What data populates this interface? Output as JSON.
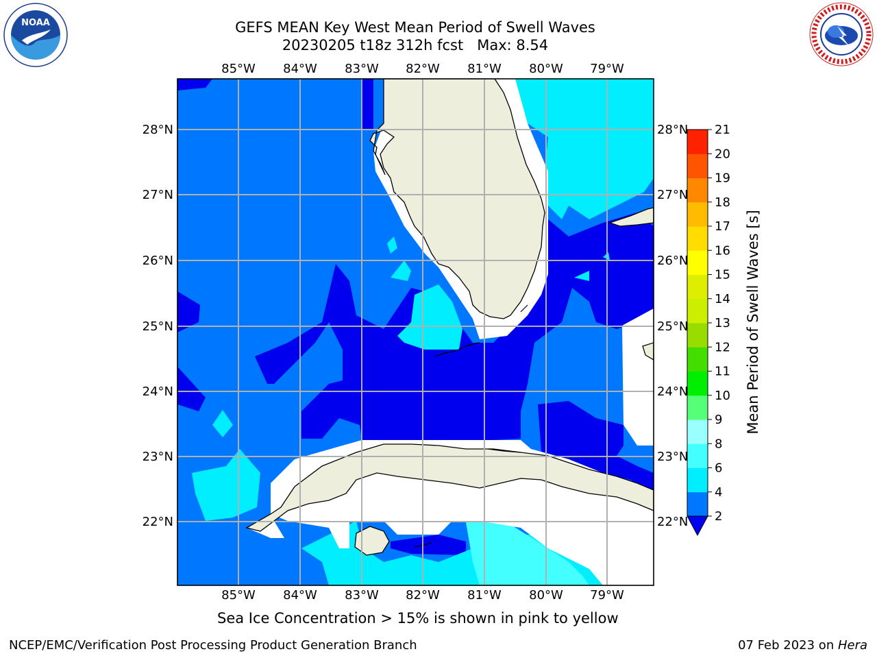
{
  "title": {
    "line1": "GEFS MEAN Key West Mean Period of Swell Waves",
    "line2": "20230205 t18z 312h fcst   Max: 8.54"
  },
  "map": {
    "lon_labels": [
      "85°W",
      "84°W",
      "83°W",
      "82°W",
      "81°W",
      "80°W",
      "79°W"
    ],
    "lat_labels": [
      "28°N",
      "27°N",
      "26°N",
      "25°N",
      "24°N",
      "23°N",
      "22°N"
    ],
    "colors": {
      "level_lt2": "#0000ee",
      "level_2_4": "#0077ff",
      "level_4_6": "#00eeff",
      "level_6_8": "#44ffff",
      "land": "#eeeedd",
      "grid": "#b0b0b0"
    }
  },
  "colorbar": {
    "label": "Mean Period of Swell Waves [s]",
    "ticks": [
      "2",
      "4",
      "6",
      "8",
      "9",
      "10",
      "11",
      "12",
      "13",
      "14",
      "15",
      "16",
      "17",
      "18",
      "19",
      "20",
      "21"
    ],
    "colors": [
      "#0077ff",
      "#00eeff",
      "#44ffff",
      "#99ffff",
      "#55ff77",
      "#00ee00",
      "#44dd00",
      "#99dd00",
      "#ccee00",
      "#ddee00",
      "#ffff00",
      "#ffdd00",
      "#ffbb00",
      "#ff8800",
      "#ff5500",
      "#ff2200"
    ]
  },
  "logos": {
    "noaa_text": "NOAA",
    "nws_text": "NATIONAL WEATHER SERVICE"
  },
  "note": "Sea Ice Concentration > 15% is shown in pink to yellow",
  "footer": {
    "left": "NCEP/EMC/Verification Post Processing Product Generation Branch",
    "date": "07 Feb 2023 on ",
    "machine": "Hera"
  }
}
